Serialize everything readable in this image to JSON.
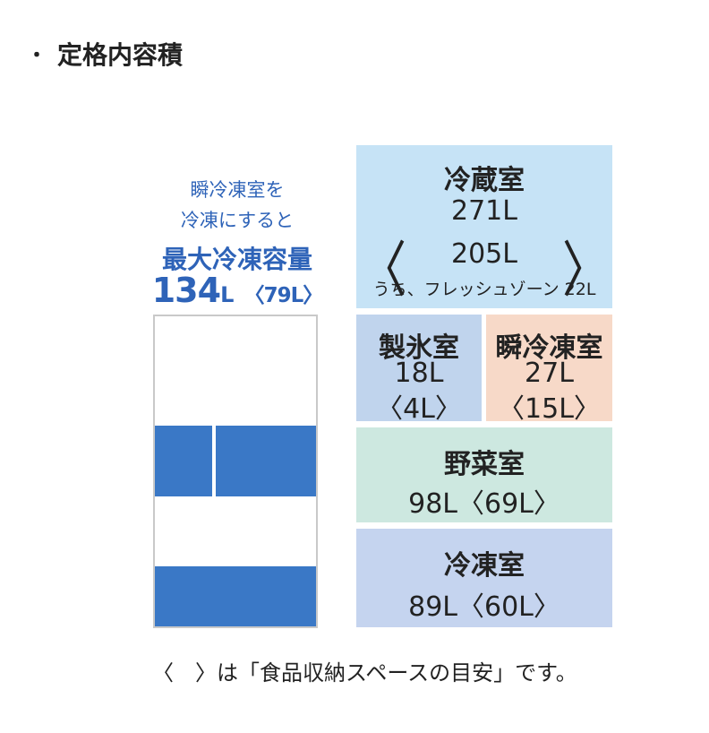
{
  "heading": {
    "bullet": "・",
    "title": "定格内容積"
  },
  "callout": {
    "line1": "瞬冷凍室を",
    "line2": "冷凍にすると",
    "line3": "最大冷凍容量",
    "big_number": "134",
    "big_unit": "L",
    "sub_value": "〈79L〉"
  },
  "compartments": {
    "fridge": {
      "name": "冷蔵室",
      "total": "271L",
      "sub": "205L",
      "note": "うち、フレッシュゾーン 22L",
      "open": "〈",
      "close": "〉"
    },
    "ice": {
      "name": "製氷室",
      "total": "18L",
      "sub": "〈4L〉"
    },
    "quick_freeze": {
      "name": "瞬冷凍室",
      "total": "27L",
      "sub": "〈15L〉"
    },
    "vegetable": {
      "name": "野菜室",
      "total": "98L〈69L〉"
    },
    "freezer": {
      "name": "冷凍室",
      "total": "89L〈60L〉"
    }
  },
  "footer": {
    "open": "〈",
    "close": "〉",
    "text": "は「食品収納スペースの目安」です。"
  },
  "colors": {
    "fridge": "#c6e3f6",
    "ice": "#c0d4ed",
    "quick_freeze": "#f7d9c8",
    "vegetable": "#cde8e0",
    "freezer": "#c5d4ef",
    "freezer_illustration": "#3a78c6",
    "callout_text": "#2e63b8"
  }
}
